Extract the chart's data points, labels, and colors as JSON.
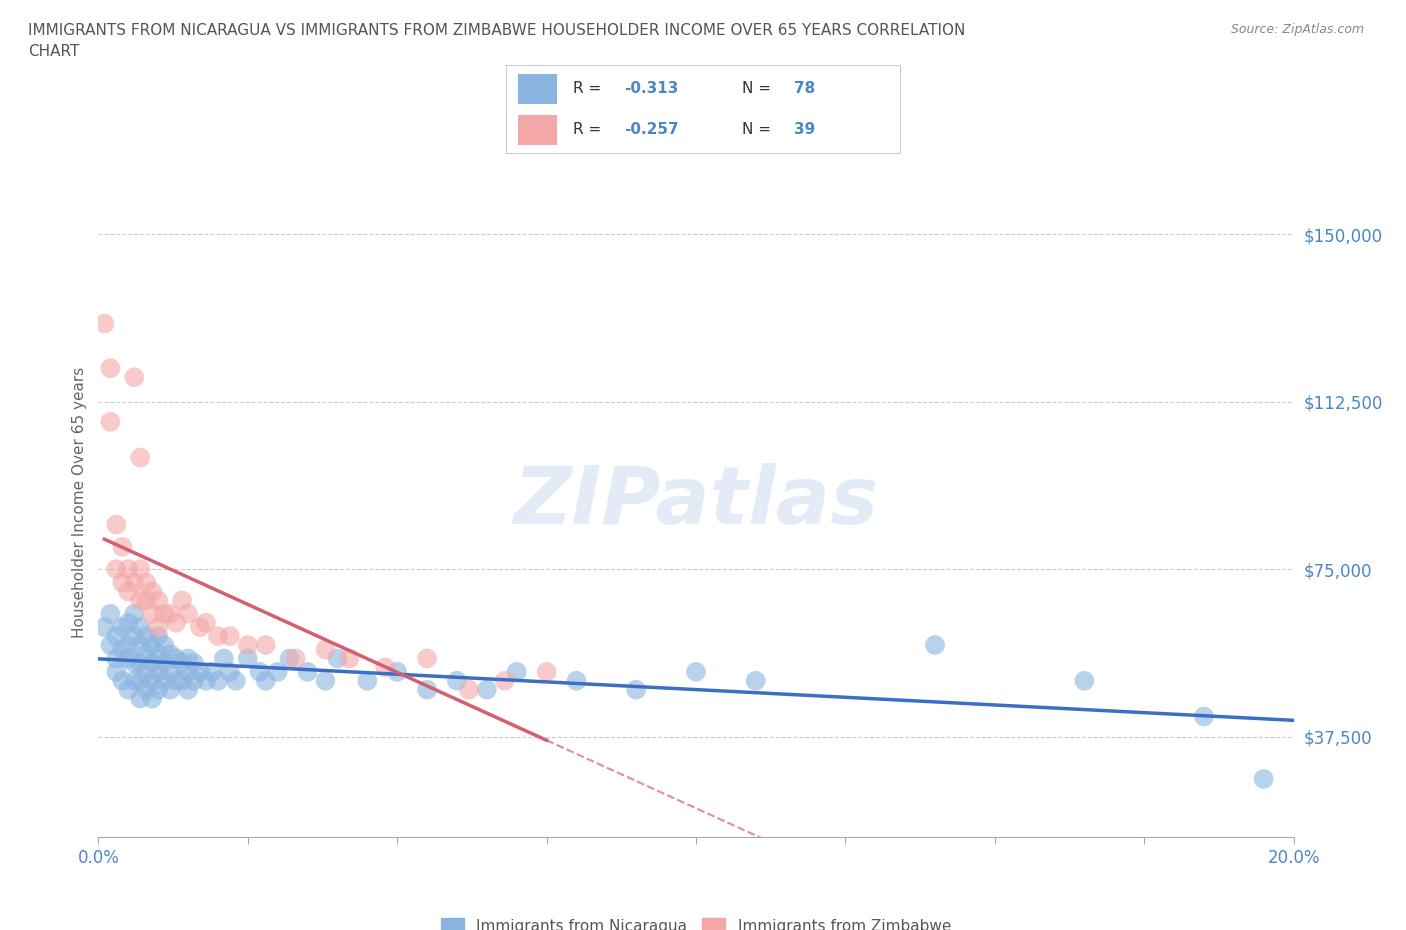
{
  "title_line1": "IMMIGRANTS FROM NICARAGUA VS IMMIGRANTS FROM ZIMBABWE HOUSEHOLDER INCOME OVER 65 YEARS CORRELATION",
  "title_line2": "CHART",
  "source": "Source: ZipAtlas.com",
  "ylabel": "Householder Income Over 65 years",
  "xlim": [
    0.0,
    0.2
  ],
  "ylim": [
    15000,
    165000
  ],
  "yticks": [
    37500,
    75000,
    112500,
    150000
  ],
  "ytick_labels": [
    "$37,500",
    "$75,000",
    "$112,500",
    "$150,000"
  ],
  "xtick_positions": [
    0.0,
    0.025,
    0.05,
    0.075,
    0.1,
    0.125,
    0.15,
    0.175,
    0.2
  ],
  "xtick_labels": [
    "0.0%",
    "",
    "",
    "",
    "",
    "",
    "",
    "",
    "20.0%"
  ],
  "nicaragua_color": "#8ab4e0",
  "zimbabwe_color": "#f4a7a7",
  "nicaragua_line_color": "#3a6fc4",
  "zimbabwe_line_color": "#d45f6e",
  "legend_label1": "Immigrants from Nicaragua",
  "legend_label2": "Immigrants from Zimbabwe",
  "watermark": "ZIPatlas",
  "nicaragua_x": [
    0.001,
    0.002,
    0.002,
    0.003,
    0.003,
    0.003,
    0.004,
    0.004,
    0.004,
    0.005,
    0.005,
    0.005,
    0.005,
    0.006,
    0.006,
    0.006,
    0.006,
    0.007,
    0.007,
    0.007,
    0.007,
    0.007,
    0.008,
    0.008,
    0.008,
    0.008,
    0.009,
    0.009,
    0.009,
    0.009,
    0.01,
    0.01,
    0.01,
    0.01,
    0.011,
    0.011,
    0.011,
    0.012,
    0.012,
    0.012,
    0.013,
    0.013,
    0.014,
    0.014,
    0.015,
    0.015,
    0.015,
    0.016,
    0.016,
    0.017,
    0.018,
    0.019,
    0.02,
    0.021,
    0.022,
    0.023,
    0.025,
    0.027,
    0.028,
    0.03,
    0.032,
    0.035,
    0.038,
    0.04,
    0.045,
    0.05,
    0.055,
    0.06,
    0.065,
    0.07,
    0.08,
    0.09,
    0.1,
    0.11,
    0.14,
    0.165,
    0.185,
    0.195
  ],
  "nicaragua_y": [
    62000,
    58000,
    65000,
    60000,
    55000,
    52000,
    62000,
    57000,
    50000,
    63000,
    58000,
    55000,
    48000,
    65000,
    60000,
    54000,
    50000,
    62000,
    58000,
    54000,
    50000,
    46000,
    60000,
    56000,
    52000,
    48000,
    58000,
    54000,
    50000,
    46000,
    60000,
    56000,
    52000,
    48000,
    58000,
    54000,
    50000,
    56000,
    52000,
    48000,
    55000,
    50000,
    54000,
    50000,
    55000,
    52000,
    48000,
    54000,
    50000,
    52000,
    50000,
    52000,
    50000,
    55000,
    52000,
    50000,
    55000,
    52000,
    50000,
    52000,
    55000,
    52000,
    50000,
    55000,
    50000,
    52000,
    48000,
    50000,
    48000,
    52000,
    50000,
    48000,
    52000,
    50000,
    58000,
    50000,
    42000,
    28000
  ],
  "zimbabwe_x": [
    0.001,
    0.002,
    0.002,
    0.003,
    0.003,
    0.004,
    0.004,
    0.005,
    0.005,
    0.006,
    0.006,
    0.007,
    0.007,
    0.007,
    0.008,
    0.008,
    0.009,
    0.009,
    0.01,
    0.01,
    0.011,
    0.012,
    0.013,
    0.014,
    0.015,
    0.017,
    0.018,
    0.02,
    0.022,
    0.025,
    0.028,
    0.033,
    0.038,
    0.042,
    0.048,
    0.055,
    0.062,
    0.068,
    0.075
  ],
  "zimbabwe_y": [
    130000,
    120000,
    108000,
    75000,
    85000,
    80000,
    72000,
    75000,
    70000,
    118000,
    72000,
    100000,
    75000,
    68000,
    72000,
    68000,
    70000,
    65000,
    68000,
    62000,
    65000,
    65000,
    63000,
    68000,
    65000,
    62000,
    63000,
    60000,
    60000,
    58000,
    58000,
    55000,
    57000,
    55000,
    53000,
    55000,
    48000,
    50000,
    52000
  ],
  "axis_color": "#4a86c8",
  "grid_color": "#cccccc",
  "title_color": "#555555",
  "bg_color": "#ffffff"
}
